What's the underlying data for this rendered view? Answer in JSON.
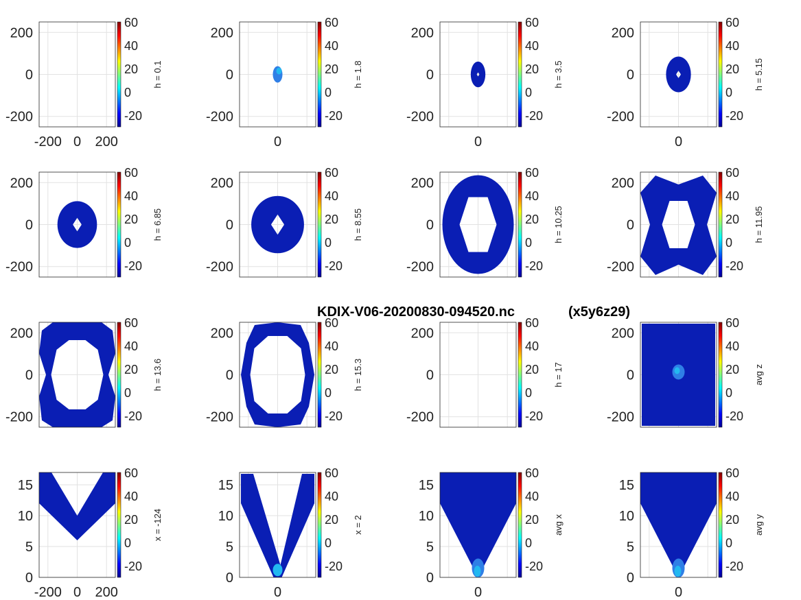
{
  "figure": {
    "suptitle": "KDIX-V06-20200830-094520.nc",
    "suptitle_suffix": "(x5y6z29)"
  },
  "colors": {
    "fill_main": "#0a1eb4",
    "fill_light": "#2f7fe6",
    "fill_cyan": "#22b8f0",
    "grid": "#e2e2e2",
    "axis": "#262626"
  },
  "colormap": "jet",
  "colorbar": {
    "range": [
      -30,
      60
    ],
    "ticks": [
      "60",
      "40",
      "20",
      "0",
      "-20"
    ]
  },
  "chart_data": [
    {
      "type": "heatmap",
      "label": "h = 0.1",
      "xrange": [
        -260,
        260
      ],
      "yrange": [
        -250,
        250
      ],
      "xticks": [
        "-200",
        "0",
        "200"
      ],
      "yticks": [
        "200",
        "0",
        "-200"
      ],
      "shape": "none",
      "a": 0,
      "b": 0,
      "hole": 0
    },
    {
      "type": "heatmap",
      "label": "h = 1.8",
      "xrange": [
        -260,
        260
      ],
      "yrange": [
        -250,
        250
      ],
      "xticks": [
        "0"
      ],
      "yticks": [
        "200",
        "0",
        "-200"
      ],
      "shape": "smallblob",
      "a": 0,
      "b": 0,
      "hole": 0
    },
    {
      "type": "heatmap",
      "label": "h = 3.5",
      "xrange": [
        -260,
        260
      ],
      "yrange": [
        -250,
        250
      ],
      "xticks": [
        "0"
      ],
      "yticks": [
        "200",
        "0",
        "-200"
      ],
      "shape": "ring",
      "a": 50,
      "b": 85,
      "hole": 12
    },
    {
      "type": "heatmap",
      "label": "h = 5.15",
      "xrange": [
        -260,
        260
      ],
      "yrange": [
        -250,
        250
      ],
      "xticks": [
        "0"
      ],
      "yticks": [
        "200",
        "0",
        "-200"
      ],
      "shape": "ring",
      "a": 85,
      "b": 118,
      "hole": 22
    },
    {
      "type": "heatmap",
      "label": "h = 6.85",
      "xrange": [
        -260,
        260
      ],
      "yrange": [
        -250,
        250
      ],
      "xticks": [],
      "yticks": [
        "200",
        "0",
        "-200"
      ],
      "shape": "ring",
      "a": 135,
      "b": 155,
      "hole": 40
    },
    {
      "type": "heatmap",
      "label": "h = 8.55",
      "xrange": [
        -260,
        260
      ],
      "yrange": [
        -250,
        250
      ],
      "xticks": [],
      "yticks": [
        "200",
        "0",
        "-200"
      ],
      "shape": "ring",
      "a": 180,
      "b": 190,
      "hole": 60
    },
    {
      "type": "heatmap",
      "label": "h = 10.25",
      "xrange": [
        -260,
        260
      ],
      "yrange": [
        -250,
        250
      ],
      "xticks": [],
      "yticks": [
        "200",
        "0",
        "-200"
      ],
      "shape": "bigring",
      "a": 235,
      "b": 230,
      "hole": 0
    },
    {
      "type": "heatmap",
      "label": "h = 11.95",
      "xrange": [
        -260,
        260
      ],
      "yrange": [
        -250,
        250
      ],
      "xticks": [],
      "yticks": [
        "200",
        "0",
        "-200"
      ],
      "shape": "bowtie",
      "a": 0,
      "b": 0,
      "hole": 0
    },
    {
      "type": "heatmap",
      "label": "h = 13.6",
      "xrange": [
        -260,
        260
      ],
      "yrange": [
        -250,
        250
      ],
      "xticks": [],
      "yticks": [
        "200",
        "0",
        "-200"
      ],
      "shape": "wing",
      "a": 0,
      "b": 0,
      "hole": 0
    },
    {
      "type": "heatmap",
      "label": "h = 15.3",
      "xrange": [
        -260,
        260
      ],
      "yrange": [
        -250,
        250
      ],
      "xticks": [],
      "yticks": [
        "200",
        "0",
        "-200"
      ],
      "shape": "thickring",
      "a": 0,
      "b": 0,
      "hole": 0
    },
    {
      "type": "heatmap",
      "label": "h = 17",
      "xrange": [
        -260,
        260
      ],
      "yrange": [
        -250,
        250
      ],
      "xticks": [],
      "yticks": [
        "200",
        "0",
        "-200"
      ],
      "shape": "none",
      "a": 0,
      "b": 0,
      "hole": 0
    },
    {
      "type": "heatmap",
      "label": "avg z",
      "xrange": [
        -260,
        260
      ],
      "yrange": [
        -250,
        250
      ],
      "xticks": [],
      "yticks": [
        "200",
        "0",
        "-200"
      ],
      "shape": "full",
      "a": 0,
      "b": 0,
      "hole": 0
    },
    {
      "type": "heatmap",
      "label": "x = -124",
      "xrange": [
        -260,
        260
      ],
      "yrange": [
        0,
        17
      ],
      "xticks": [
        "-200",
        "0",
        "200"
      ],
      "yticks": [
        "15",
        "10",
        "5",
        "0"
      ],
      "shape": "u",
      "a": 0,
      "b": 0,
      "hole": 0
    },
    {
      "type": "heatmap",
      "label": "x = 2",
      "xrange": [
        -260,
        260
      ],
      "yrange": [
        0,
        17
      ],
      "xticks": [
        "0"
      ],
      "yticks": [
        "15",
        "10",
        "5",
        "0"
      ],
      "shape": "vthin",
      "a": 0,
      "b": 0,
      "hole": 0
    },
    {
      "type": "heatmap",
      "label": "avg x",
      "xrange": [
        -260,
        260
      ],
      "yrange": [
        0,
        17
      ],
      "xticks": [
        "0"
      ],
      "yticks": [
        "15",
        "10",
        "5",
        "0"
      ],
      "shape": "vfill",
      "a": 0,
      "b": 0,
      "hole": 0
    },
    {
      "type": "heatmap",
      "label": "avg y",
      "xrange": [
        -260,
        260
      ],
      "yrange": [
        0,
        17
      ],
      "xticks": [
        "0"
      ],
      "yticks": [
        "15",
        "10",
        "5",
        "0"
      ],
      "shape": "vfill",
      "a": 0,
      "b": 0,
      "hole": 0
    }
  ]
}
